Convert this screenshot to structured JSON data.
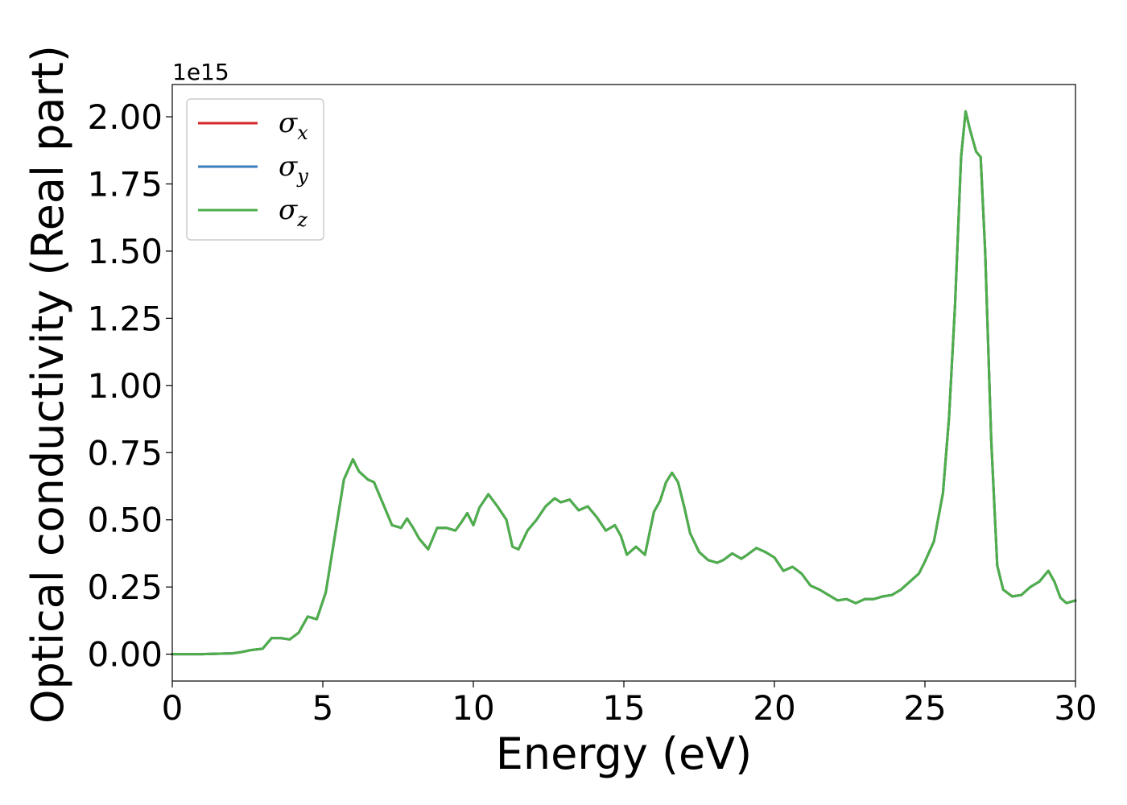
{
  "chart_data": {
    "type": "line",
    "xlabel": "Energy (eV)",
    "ylabel": "Optical conductivity (Real part)",
    "y_offset_label": "1e15",
    "xlim": [
      0,
      30
    ],
    "ylim": [
      -0.1,
      2.12
    ],
    "y_scale_factor": 1000000000000000.0,
    "xticks": [
      0,
      5,
      10,
      15,
      20,
      25,
      30
    ],
    "xtick_labels": [
      "0",
      "5",
      "10",
      "15",
      "20",
      "25",
      "30"
    ],
    "yticks": [
      0.0,
      0.25,
      0.5,
      0.75,
      1.0,
      1.25,
      1.5,
      1.75,
      2.0
    ],
    "ytick_labels": [
      "0.00",
      "0.25",
      "0.50",
      "0.75",
      "1.00",
      "1.25",
      "1.50",
      "1.75",
      "2.00"
    ],
    "grid": false,
    "legend_position": "top-left",
    "x": [
      0,
      1,
      2,
      2.3,
      2.6,
      3.0,
      3.3,
      3.6,
      3.9,
      4.2,
      4.5,
      4.8,
      5.1,
      5.4,
      5.7,
      6.0,
      6.2,
      6.5,
      6.7,
      7.0,
      7.3,
      7.6,
      7.8,
      8.0,
      8.2,
      8.5,
      8.8,
      9.1,
      9.4,
      9.6,
      9.8,
      10.0,
      10.2,
      10.5,
      10.8,
      11.1,
      11.3,
      11.5,
      11.8,
      12.1,
      12.4,
      12.7,
      12.9,
      13.2,
      13.5,
      13.8,
      14.1,
      14.4,
      14.7,
      14.9,
      15.1,
      15.4,
      15.7,
      16.0,
      16.2,
      16.4,
      16.6,
      16.8,
      17.0,
      17.2,
      17.5,
      17.8,
      18.1,
      18.3,
      18.6,
      18.9,
      19.1,
      19.4,
      19.7,
      20.0,
      20.3,
      20.6,
      20.9,
      21.2,
      21.5,
      21.8,
      22.1,
      22.4,
      22.7,
      23.0,
      23.3,
      23.6,
      23.9,
      24.2,
      24.5,
      24.8,
      25.0,
      25.3,
      25.6,
      25.8,
      26.0,
      26.2,
      26.35,
      26.5,
      26.7,
      26.85,
      27.0,
      27.2,
      27.4,
      27.6,
      27.9,
      28.2,
      28.5,
      28.8,
      29.1,
      29.3,
      29.5,
      29.7,
      30.0
    ],
    "series": [
      {
        "name": "σ_x",
        "color": "#d62728",
        "y": [
          0.0,
          0.0,
          0.003,
          0.008,
          0.015,
          0.02,
          0.06,
          0.06,
          0.055,
          0.08,
          0.14,
          0.13,
          0.23,
          0.44,
          0.65,
          0.725,
          0.68,
          0.65,
          0.64,
          0.56,
          0.48,
          0.47,
          0.505,
          0.47,
          0.43,
          0.39,
          0.47,
          0.47,
          0.46,
          0.49,
          0.525,
          0.48,
          0.545,
          0.595,
          0.55,
          0.5,
          0.4,
          0.39,
          0.46,
          0.5,
          0.55,
          0.58,
          0.565,
          0.575,
          0.535,
          0.55,
          0.51,
          0.46,
          0.48,
          0.44,
          0.37,
          0.4,
          0.37,
          0.53,
          0.57,
          0.64,
          0.675,
          0.64,
          0.55,
          0.45,
          0.38,
          0.35,
          0.34,
          0.35,
          0.375,
          0.355,
          0.37,
          0.395,
          0.38,
          0.36,
          0.31,
          0.325,
          0.3,
          0.255,
          0.24,
          0.22,
          0.2,
          0.205,
          0.19,
          0.205,
          0.205,
          0.215,
          0.22,
          0.24,
          0.27,
          0.3,
          0.345,
          0.42,
          0.6,
          0.88,
          1.3,
          1.85,
          2.02,
          1.95,
          1.87,
          1.85,
          1.5,
          0.8,
          0.33,
          0.24,
          0.215,
          0.22,
          0.25,
          0.27,
          0.31,
          0.27,
          0.21,
          0.19,
          0.2
        ]
      },
      {
        "name": "σ_y",
        "color": "#3b7dbd",
        "y": [
          0.0,
          0.0,
          0.003,
          0.008,
          0.015,
          0.02,
          0.06,
          0.06,
          0.055,
          0.08,
          0.14,
          0.13,
          0.23,
          0.44,
          0.65,
          0.725,
          0.68,
          0.65,
          0.64,
          0.56,
          0.48,
          0.47,
          0.505,
          0.47,
          0.43,
          0.39,
          0.47,
          0.47,
          0.46,
          0.49,
          0.525,
          0.48,
          0.545,
          0.595,
          0.55,
          0.5,
          0.4,
          0.39,
          0.46,
          0.5,
          0.55,
          0.58,
          0.565,
          0.575,
          0.535,
          0.55,
          0.51,
          0.46,
          0.48,
          0.44,
          0.37,
          0.4,
          0.37,
          0.53,
          0.57,
          0.64,
          0.675,
          0.64,
          0.55,
          0.45,
          0.38,
          0.35,
          0.34,
          0.35,
          0.375,
          0.355,
          0.37,
          0.395,
          0.38,
          0.36,
          0.31,
          0.325,
          0.3,
          0.255,
          0.24,
          0.22,
          0.2,
          0.205,
          0.19,
          0.205,
          0.205,
          0.215,
          0.22,
          0.24,
          0.27,
          0.3,
          0.345,
          0.42,
          0.6,
          0.88,
          1.3,
          1.85,
          2.02,
          1.95,
          1.87,
          1.85,
          1.5,
          0.8,
          0.33,
          0.24,
          0.215,
          0.22,
          0.25,
          0.27,
          0.31,
          0.27,
          0.21,
          0.19,
          0.2
        ]
      },
      {
        "name": "σ_z",
        "color": "#4daf4a",
        "y": [
          0.0,
          0.0,
          0.003,
          0.008,
          0.015,
          0.02,
          0.06,
          0.06,
          0.055,
          0.08,
          0.14,
          0.13,
          0.23,
          0.44,
          0.65,
          0.725,
          0.68,
          0.65,
          0.64,
          0.56,
          0.48,
          0.47,
          0.505,
          0.47,
          0.43,
          0.39,
          0.47,
          0.47,
          0.46,
          0.49,
          0.525,
          0.48,
          0.545,
          0.595,
          0.55,
          0.5,
          0.4,
          0.39,
          0.46,
          0.5,
          0.55,
          0.58,
          0.565,
          0.575,
          0.535,
          0.55,
          0.51,
          0.46,
          0.48,
          0.44,
          0.37,
          0.4,
          0.37,
          0.53,
          0.57,
          0.64,
          0.675,
          0.64,
          0.55,
          0.45,
          0.38,
          0.35,
          0.34,
          0.35,
          0.375,
          0.355,
          0.37,
          0.395,
          0.38,
          0.36,
          0.31,
          0.325,
          0.3,
          0.255,
          0.24,
          0.22,
          0.2,
          0.205,
          0.19,
          0.205,
          0.205,
          0.215,
          0.22,
          0.24,
          0.27,
          0.3,
          0.345,
          0.42,
          0.6,
          0.88,
          1.3,
          1.85,
          2.02,
          1.95,
          1.87,
          1.85,
          1.5,
          0.8,
          0.33,
          0.24,
          0.215,
          0.22,
          0.25,
          0.27,
          0.31,
          0.27,
          0.21,
          0.19,
          0.2
        ]
      }
    ],
    "legend": [
      {
        "symbol": "σ",
        "subscript": "x",
        "color": "#d62728"
      },
      {
        "symbol": "σ",
        "subscript": "y",
        "color": "#3b7dbd"
      },
      {
        "symbol": "σ",
        "subscript": "z",
        "color": "#4daf4a"
      }
    ]
  }
}
